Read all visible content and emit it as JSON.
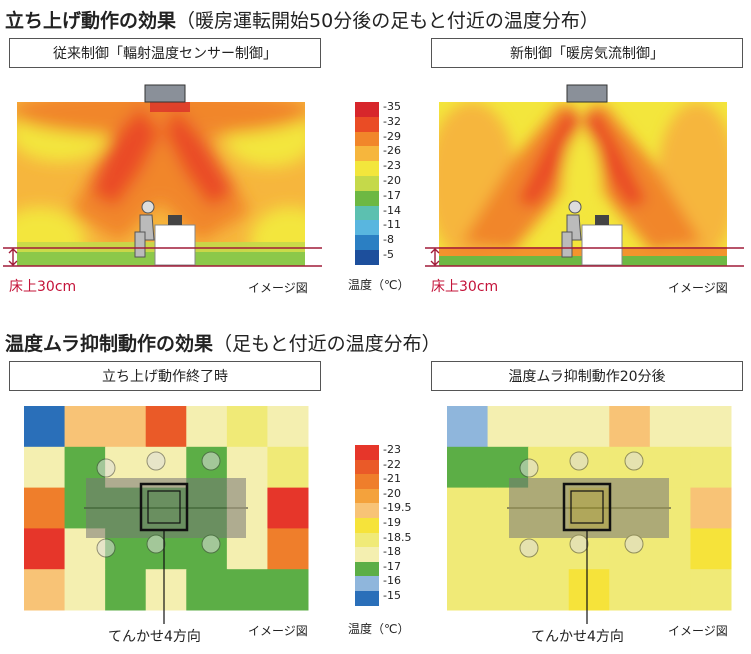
{
  "section1": {
    "title": "立ち上げ動作の効果",
    "subtitle": "（暖房運転開始50分後の足もと付近の温度分布）",
    "left_label": "従来制御「輻射温度センサー制御」",
    "right_label": "新制御「暖房気流制御」",
    "floor_label": "床上30cm",
    "image_note": "イメージ図",
    "legend_title": "温度（℃）",
    "legend_values": [
      "35",
      "32",
      "29",
      "26",
      "23",
      "20",
      "17",
      "14",
      "11",
      "8",
      "5"
    ],
    "legend_colors": [
      "#d7262b",
      "#ea4c25",
      "#f1862a",
      "#f6b63d",
      "#f3e63c",
      "#c5d94a",
      "#6db843",
      "#5cc0b0",
      "#59b6df",
      "#2b7fc3",
      "#1d4f9c"
    ]
  },
  "section2": {
    "title": "温度ムラ抑制動作の効果",
    "subtitle": "（足もと付近の温度分布）",
    "left_label": "立ち上げ動作終了時",
    "right_label": "温度ムラ抑制動作20分後",
    "cassette_label": "てんかせ4方向",
    "image_note": "イメージ図",
    "legend_title": "温度（℃）",
    "legend_values": [
      "23",
      "22",
      "21",
      "20",
      "19.5",
      "19",
      "18.5",
      "18",
      "17",
      "16",
      "15"
    ],
    "legend_colors": [
      "#e6362a",
      "#ea5a28",
      "#ef7e2b",
      "#f4a23c",
      "#f8c376",
      "#f6e33a",
      "#f0ea77",
      "#f4efb0",
      "#5cae46",
      "#8fb6dc",
      "#2a6fb9"
    ]
  }
}
